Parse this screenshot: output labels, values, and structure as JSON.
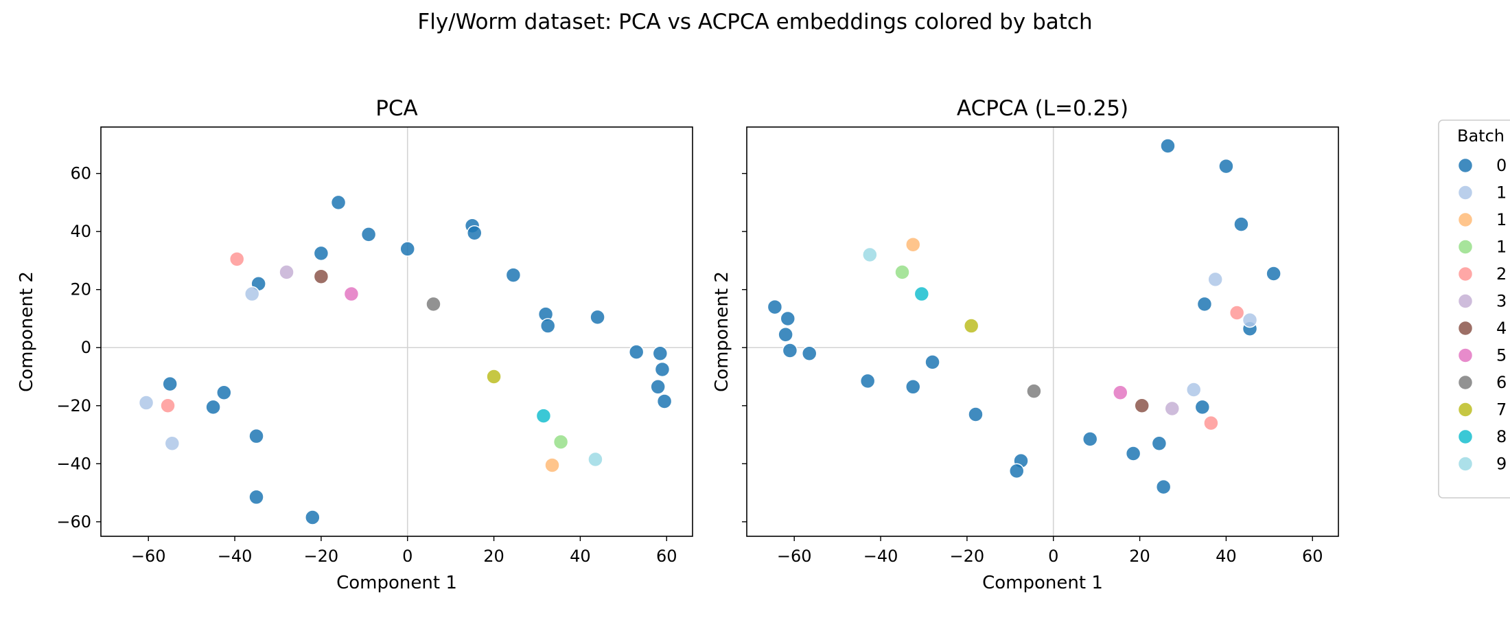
{
  "chart_data": [
    {
      "type": "scatter",
      "title": "PCA",
      "xlabel": "Component 1",
      "ylabel": "Component 2",
      "xlim": [
        -71,
        66
      ],
      "ylim": [
        -65,
        76
      ],
      "xticks": [
        -60,
        -40,
        -20,
        0,
        20,
        40,
        60
      ],
      "yticks": [
        -60,
        -40,
        -20,
        0,
        20,
        40,
        60
      ],
      "reference_lines": {
        "x": 0,
        "y": 0
      },
      "series": [
        {
          "name": "0",
          "color": "#1f77b4",
          "points": [
            [
              -16,
              50
            ],
            [
              -9,
              39
            ],
            [
              0,
              34
            ],
            [
              15,
              42
            ],
            [
              15.5,
              39.5
            ],
            [
              -20,
              32.5
            ],
            [
              -34.5,
              22
            ],
            [
              24.5,
              25
            ],
            [
              32,
              11.5
            ],
            [
              32.5,
              7.5
            ],
            [
              44,
              10.5
            ],
            [
              53,
              -1.5
            ],
            [
              58.5,
              -2
            ],
            [
              59,
              -7.5
            ],
            [
              58,
              -13.5
            ],
            [
              59.5,
              -18.5
            ],
            [
              -55,
              -12.5
            ],
            [
              -42.5,
              -15.5
            ],
            [
              -45,
              -20.5
            ],
            [
              -35,
              -30.5
            ],
            [
              -35,
              -51.5
            ],
            [
              -22,
              -58.5
            ]
          ]
        },
        {
          "name": "1",
          "color": "#aec7e8",
          "points": [
            [
              -36,
              18.5
            ],
            [
              -60.5,
              -19
            ],
            [
              -54.5,
              -33
            ]
          ]
        },
        {
          "name": "1",
          "color": "#ffbb78",
          "points": [
            [
              33.5,
              -40.5
            ]
          ]
        },
        {
          "name": "1",
          "color": "#98df8a",
          "points": [
            [
              35.5,
              -32.5
            ]
          ]
        },
        {
          "name": "2",
          "color": "#ff9896",
          "points": [
            [
              -39.5,
              30.5
            ],
            [
              -55.5,
              -20
            ]
          ]
        },
        {
          "name": "3",
          "color": "#c5b0d5",
          "points": [
            [
              -28,
              26
            ]
          ]
        },
        {
          "name": "4",
          "color": "#8c564b",
          "points": [
            [
              -20,
              24.5
            ]
          ]
        },
        {
          "name": "5",
          "color": "#e377c2",
          "points": [
            [
              -13,
              18.5
            ]
          ]
        },
        {
          "name": "6",
          "color": "#7f7f7f",
          "points": [
            [
              6,
              15
            ]
          ]
        },
        {
          "name": "7",
          "color": "#bcbd22",
          "points": [
            [
              20,
              -10
            ]
          ]
        },
        {
          "name": "8",
          "color": "#17becf",
          "points": [
            [
              31.5,
              -23.5
            ]
          ]
        },
        {
          "name": "9",
          "color": "#9edae5",
          "points": [
            [
              43.5,
              -38.5
            ]
          ]
        }
      ]
    },
    {
      "type": "scatter",
      "title": "ACPCA (L=0.25)",
      "xlabel": "Component 1",
      "ylabel": "Component 2",
      "xlim": [
        -71,
        66
      ],
      "ylim": [
        -65,
        76
      ],
      "xticks": [
        -60,
        -40,
        -20,
        0,
        20,
        40,
        60
      ],
      "yticks": [
        -60,
        -40,
        -20,
        0,
        20,
        40,
        60
      ],
      "reference_lines": {
        "x": 0,
        "y": 0
      },
      "series": [
        {
          "name": "0",
          "color": "#1f77b4",
          "points": [
            [
              26.5,
              69.5
            ],
            [
              40,
              62.5
            ],
            [
              43.5,
              42.5
            ],
            [
              51,
              25.5
            ],
            [
              35,
              15
            ],
            [
              45.5,
              6.5
            ],
            [
              -64.5,
              14
            ],
            [
              -61.5,
              10
            ],
            [
              -62,
              4.5
            ],
            [
              -61,
              -1
            ],
            [
              -56.5,
              -2
            ],
            [
              -28,
              -5
            ],
            [
              -43,
              -11.5
            ],
            [
              -32.5,
              -13.5
            ],
            [
              -18,
              -23
            ],
            [
              8.5,
              -31.5
            ],
            [
              -7.5,
              -39
            ],
            [
              -8.5,
              -42.5
            ],
            [
              18.5,
              -36.5
            ],
            [
              24.5,
              -33
            ],
            [
              34.5,
              -20.5
            ],
            [
              25.5,
              -48
            ]
          ]
        },
        {
          "name": "1",
          "color": "#aec7e8",
          "points": [
            [
              37.5,
              23.5
            ],
            [
              45.5,
              9.5
            ],
            [
              32.5,
              -14.5
            ]
          ]
        },
        {
          "name": "1",
          "color": "#ffbb78",
          "points": [
            [
              -32.5,
              35.5
            ]
          ]
        },
        {
          "name": "1",
          "color": "#98df8a",
          "points": [
            [
              -35,
              26
            ]
          ]
        },
        {
          "name": "2",
          "color": "#ff9896",
          "points": [
            [
              42.5,
              12
            ],
            [
              36.5,
              -26
            ]
          ]
        },
        {
          "name": "3",
          "color": "#c5b0d5",
          "points": [
            [
              27.5,
              -21
            ]
          ]
        },
        {
          "name": "4",
          "color": "#8c564b",
          "points": [
            [
              20.5,
              -20
            ]
          ]
        },
        {
          "name": "5",
          "color": "#e377c2",
          "points": [
            [
              15.5,
              -15.5
            ]
          ]
        },
        {
          "name": "6",
          "color": "#7f7f7f",
          "points": [
            [
              -4.5,
              -15
            ]
          ]
        },
        {
          "name": "7",
          "color": "#bcbd22",
          "points": [
            [
              -19,
              7.5
            ]
          ]
        },
        {
          "name": "8",
          "color": "#17becf",
          "points": [
            [
              -30.5,
              18.5
            ]
          ]
        },
        {
          "name": "9",
          "color": "#9edae5",
          "points": [
            [
              -42.5,
              32
            ]
          ]
        }
      ]
    }
  ],
  "figure": {
    "suptitle": "Fly/Worm dataset: PCA vs ACPCA embeddings colored by batch"
  },
  "legend": {
    "title": "Batch",
    "placement": "right, outside, clipped at figure edge",
    "entries": [
      {
        "label": "0",
        "color": "#1f77b4"
      },
      {
        "label": "1",
        "color": "#aec7e8"
      },
      {
        "label": "1",
        "color": "#ffbb78"
      },
      {
        "label": "1",
        "color": "#98df8a"
      },
      {
        "label": "2",
        "color": "#ff9896"
      },
      {
        "label": "3",
        "color": "#c5b0d5"
      },
      {
        "label": "4",
        "color": "#8c564b"
      },
      {
        "label": "5",
        "color": "#e377c2"
      },
      {
        "label": "6",
        "color": "#7f7f7f"
      },
      {
        "label": "7",
        "color": "#bcbd22"
      },
      {
        "label": "8",
        "color": "#17becf"
      },
      {
        "label": "9",
        "color": "#9edae5"
      }
    ]
  }
}
